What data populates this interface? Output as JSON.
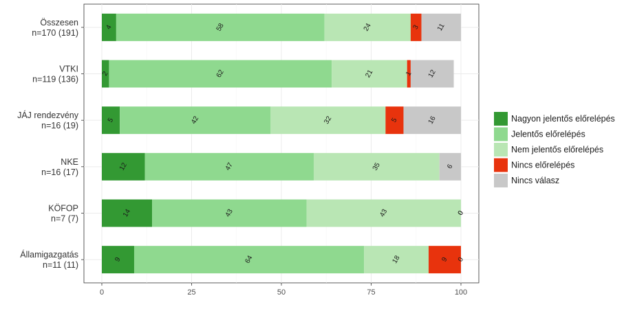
{
  "chart_data": {
    "type": "bar",
    "orientation": "horizontal",
    "stacked": true,
    "categories": [
      [
        "Összesen",
        "n=170 (191)"
      ],
      [
        "VTKI",
        "n=119 (136)"
      ],
      [
        "JÁJ rendezvény",
        "n=16 (19)"
      ],
      [
        "NKE",
        "n=16 (17)"
      ],
      [
        "KÖFOP",
        "n=7 (7)"
      ],
      [
        "Államigazgatás",
        "n=11 (11)"
      ]
    ],
    "series": [
      {
        "name": "Nagyon jelentős előrelépés",
        "color": "#339933",
        "values": [
          4,
          2,
          5,
          12,
          14,
          9
        ]
      },
      {
        "name": "Jelentős előrelépés",
        "color": "#8fd98f",
        "values": [
          58,
          62,
          42,
          47,
          43,
          64
        ]
      },
      {
        "name": "Nem jelentős előrelépés",
        "color": "#b9e6b4",
        "values": [
          24,
          21,
          32,
          35,
          43,
          18
        ]
      },
      {
        "name": "Nincs előrelépés",
        "color": "#e8330d",
        "values": [
          3,
          1,
          5,
          0,
          0,
          9
        ]
      },
      {
        "name": "Nincs válasz",
        "color": "#c8c8c8",
        "values": [
          11,
          12,
          16,
          6,
          0,
          0
        ]
      }
    ],
    "xlim": [
      0,
      100
    ],
    "xticks": [
      "0",
      "25",
      "50",
      "75",
      "100"
    ],
    "xlabel": "",
    "ylabel": "",
    "grid": true,
    "legend_position": "right"
  }
}
